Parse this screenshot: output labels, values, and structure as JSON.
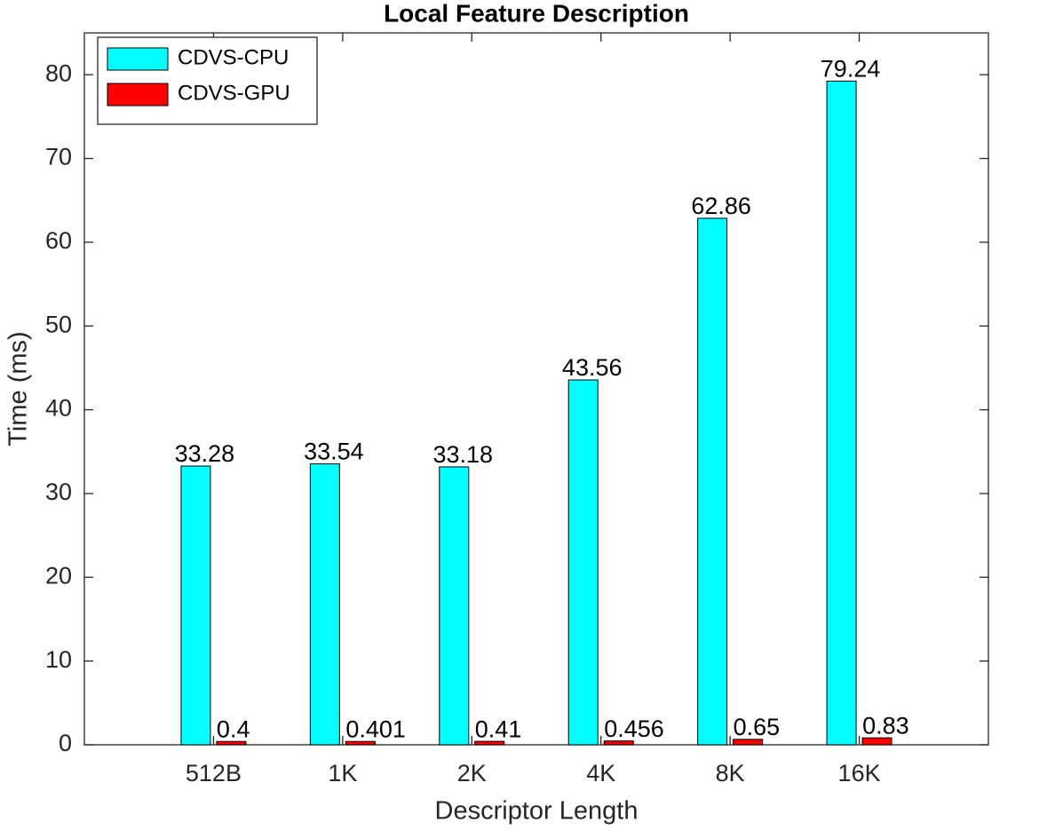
{
  "chart_data": {
    "type": "bar",
    "title": "Local Feature Description",
    "x_label": "Descriptor Length",
    "y_label": "Time (ms)",
    "categories": [
      "512B",
      "1K",
      "2K",
      "4K",
      "8K",
      "16K"
    ],
    "series": [
      {
        "name": "CDVS-CPU",
        "color": "#00ffff",
        "values": [
          33.28,
          33.54,
          33.18,
          43.56,
          62.86,
          79.24
        ]
      },
      {
        "name": "CDVS-GPU",
        "color": "#ff0000",
        "values": [
          0.4,
          0.401,
          0.41,
          0.456,
          0.65,
          0.83
        ]
      }
    ],
    "ylim": [
      0,
      85
    ],
    "yticks": [
      0,
      10,
      20,
      30,
      40,
      50,
      60,
      70,
      80
    ],
    "grid": false,
    "legend": "upper left"
  }
}
